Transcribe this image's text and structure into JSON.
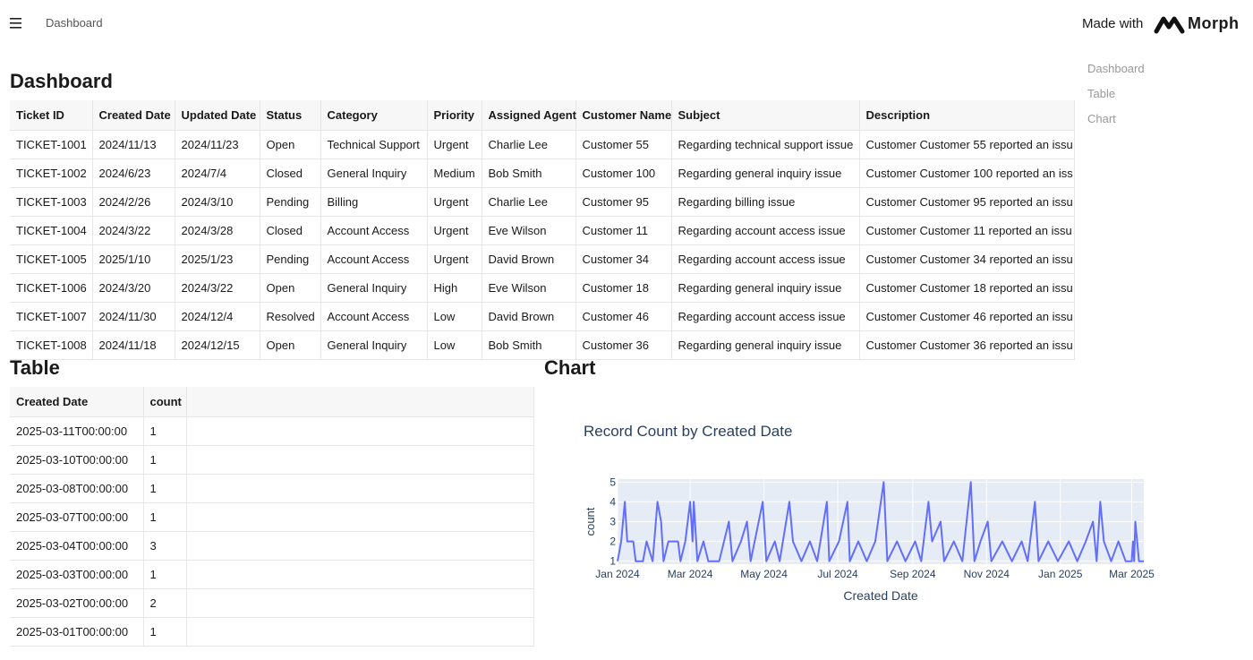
{
  "header": {
    "breadcrumb": "Dashboard",
    "made_with": "Made with",
    "brand": "Morph"
  },
  "nav": [
    "Dashboard",
    "Table",
    "Chart"
  ],
  "sections": {
    "dashboard": "Dashboard",
    "table": "Table",
    "chart": "Chart"
  },
  "tickets": {
    "columns": [
      "Ticket ID",
      "Created Date",
      "Updated Date",
      "Status",
      "Category",
      "Priority",
      "Assigned Agent",
      "Customer Name",
      "Subject",
      "Description"
    ],
    "rows": [
      [
        "TICKET-1001",
        "2024/11/13",
        "2024/11/23",
        "Open",
        "Technical Support",
        "Urgent",
        "Charlie Lee",
        "Customer 55",
        "Regarding technical support issue",
        "Customer Customer 55 reported an issu"
      ],
      [
        "TICKET-1002",
        "2024/6/23",
        "2024/7/4",
        "Closed",
        "General Inquiry",
        "Medium",
        "Bob Smith",
        "Customer 100",
        "Regarding general inquiry issue",
        "Customer Customer 100 reported an iss"
      ],
      [
        "TICKET-1003",
        "2024/2/26",
        "2024/3/10",
        "Pending",
        "Billing",
        "Urgent",
        "Charlie Lee",
        "Customer 95",
        "Regarding billing issue",
        "Customer Customer 95 reported an issu"
      ],
      [
        "TICKET-1004",
        "2024/3/22",
        "2024/3/28",
        "Closed",
        "Account Access",
        "Urgent",
        "Eve Wilson",
        "Customer 11",
        "Regarding account access issue",
        "Customer Customer 11 reported an issu"
      ],
      [
        "TICKET-1005",
        "2025/1/10",
        "2025/1/23",
        "Pending",
        "Account Access",
        "Urgent",
        "David Brown",
        "Customer 34",
        "Regarding account access issue",
        "Customer Customer 34 reported an issu"
      ],
      [
        "TICKET-1006",
        "2024/3/20",
        "2024/3/22",
        "Open",
        "General Inquiry",
        "High",
        "Eve Wilson",
        "Customer 18",
        "Regarding general inquiry issue",
        "Customer Customer 18 reported an issu"
      ],
      [
        "TICKET-1007",
        "2024/11/30",
        "2024/12/4",
        "Resolved",
        "Account Access",
        "Low",
        "David Brown",
        "Customer 46",
        "Regarding account access issue",
        "Customer Customer 46 reported an issu"
      ],
      [
        "TICKET-1008",
        "2024/11/18",
        "2024/12/15",
        "Open",
        "General Inquiry",
        "Low",
        "Bob Smith",
        "Customer 36",
        "Regarding general inquiry issue",
        "Customer Customer 36 reported an issu"
      ]
    ]
  },
  "counts": {
    "columns": [
      "Created Date",
      "count"
    ],
    "rows": [
      [
        "2025-03-11T00:00:00",
        1
      ],
      [
        "2025-03-10T00:00:00",
        1
      ],
      [
        "2025-03-08T00:00:00",
        1
      ],
      [
        "2025-03-07T00:00:00",
        1
      ],
      [
        "2025-03-04T00:00:00",
        3
      ],
      [
        "2025-03-03T00:00:00",
        1
      ],
      [
        "2025-03-02T00:00:00",
        2
      ],
      [
        "2025-03-01T00:00:00",
        1
      ]
    ]
  },
  "chart_data": {
    "type": "line",
    "title": "Record Count by Created Date",
    "x_label": "Created Date",
    "y_label": "count",
    "color": "#636efa",
    "x": [
      "2024-01-01",
      "2024-01-04",
      "2024-01-07",
      "2024-01-09",
      "2024-01-14",
      "2024-01-16",
      "2024-01-22",
      "2024-01-25",
      "2024-01-30",
      "2024-02-03",
      "2024-02-06",
      "2024-02-08",
      "2024-02-12",
      "2024-02-20",
      "2024-02-22",
      "2024-02-26",
      "2024-03-01",
      "2024-03-03",
      "2024-03-04",
      "2024-03-07",
      "2024-03-12",
      "2024-03-16",
      "2024-03-25",
      "2024-03-29",
      "2024-04-02",
      "2024-04-05",
      "2024-04-12",
      "2024-04-17",
      "2024-04-20",
      "2024-04-30",
      "2024-05-03",
      "2024-05-10",
      "2024-05-14",
      "2024-05-22",
      "2024-05-25",
      "2024-06-01",
      "2024-06-08",
      "2024-06-14",
      "2024-06-22",
      "2024-06-24",
      "2024-07-02",
      "2024-07-09",
      "2024-07-11",
      "2024-07-18",
      "2024-07-25",
      "2024-08-01",
      "2024-08-08",
      "2024-08-11",
      "2024-08-19",
      "2024-08-26",
      "2024-09-03",
      "2024-09-08",
      "2024-09-14",
      "2024-09-17",
      "2024-09-24",
      "2024-09-27",
      "2024-10-05",
      "2024-10-12",
      "2024-10-19",
      "2024-10-22",
      "2024-10-27",
      "2024-11-02",
      "2024-11-05",
      "2024-11-14",
      "2024-11-22",
      "2024-11-30",
      "2024-12-05",
      "2024-12-11",
      "2024-12-14",
      "2024-12-22",
      "2024-12-30",
      "2025-01-08",
      "2025-01-15",
      "2025-01-22",
      "2025-01-28",
      "2025-01-31",
      "2025-02-03",
      "2025-02-06",
      "2025-02-12",
      "2025-02-18",
      "2025-02-24",
      "2025-03-01",
      "2025-03-02",
      "2025-03-03",
      "2025-03-04",
      "2025-03-07",
      "2025-03-08",
      "2025-03-10",
      "2025-03-11"
    ],
    "values": [
      1,
      2,
      4,
      2,
      2,
      1,
      1,
      2,
      1,
      4,
      3,
      1,
      2,
      2,
      1,
      2,
      4,
      2,
      4,
      1,
      2,
      1,
      1,
      2,
      3,
      1,
      2,
      3,
      1,
      4,
      1,
      2,
      1,
      4,
      2,
      1,
      2,
      1,
      4,
      1,
      2,
      4,
      1,
      2,
      1,
      2,
      5,
      1,
      2,
      1,
      2,
      1,
      4,
      2,
      3,
      1,
      2,
      1,
      5,
      1,
      2,
      3,
      1,
      2,
      1,
      2,
      1,
      4,
      1,
      2,
      1,
      2,
      1,
      2,
      3,
      1,
      4,
      2,
      1,
      2,
      1,
      1,
      2,
      1,
      3,
      1,
      1,
      1,
      1
    ],
    "xlim": [
      "2024-01-01",
      "2025-03-11"
    ],
    "xticks": [
      {
        "value": "2024-01-01",
        "label": "Jan 2024"
      },
      {
        "value": "2024-03-01",
        "label": "Mar 2024"
      },
      {
        "value": "2024-05-01",
        "label": "May 2024"
      },
      {
        "value": "2024-07-01",
        "label": "Jul 2024"
      },
      {
        "value": "2024-09-01",
        "label": "Sep 2024"
      },
      {
        "value": "2024-11-01",
        "label": "Nov 2024"
      },
      {
        "value": "2025-01-01",
        "label": "Jan 2025"
      },
      {
        "value": "2025-03-01",
        "label": "Mar 2025"
      }
    ],
    "ylim": [
      0.85,
      5.15
    ],
    "yticks": [
      1,
      2,
      3,
      4,
      5
    ],
    "grid": true
  }
}
